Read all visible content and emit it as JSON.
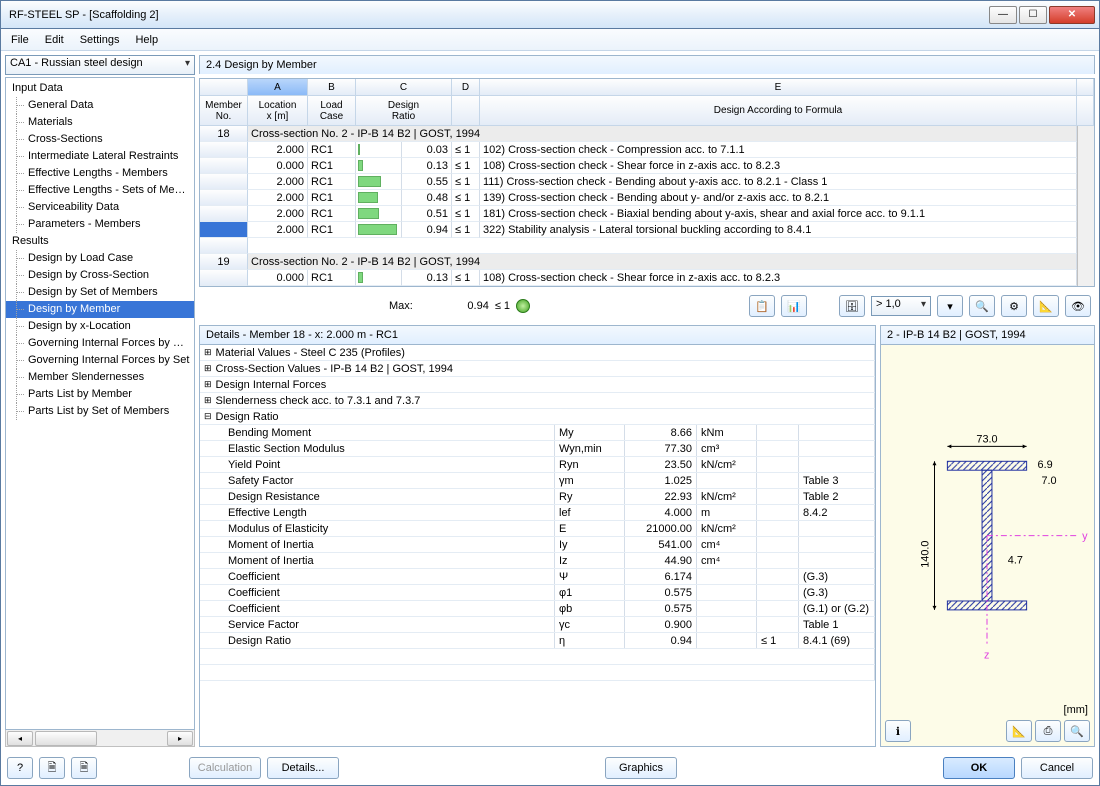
{
  "window_title": "RF-STEEL SP - [Scaffolding 2]",
  "menu": [
    "File",
    "Edit",
    "Settings",
    "Help"
  ],
  "combo": "CA1 - Russian steel design",
  "tree": {
    "input_hdr": "Input Data",
    "input": [
      "General Data",
      "Materials",
      "Cross-Sections",
      "Intermediate Lateral Restraints",
      "Effective Lengths - Members",
      "Effective Lengths - Sets of Members",
      "Serviceability Data",
      "Parameters - Members"
    ],
    "results_hdr": "Results",
    "results": [
      "Design by Load Case",
      "Design by Cross-Section",
      "Design by Set of Members",
      "Design by Member",
      "Design by x-Location",
      "Governing Internal Forces by Member",
      "Governing Internal Forces by Set",
      "Member Slendernesses",
      "Parts List by Member",
      "Parts List by Set of Members"
    ],
    "selected": "Design by Member"
  },
  "panel_title": "2.4 Design by Member",
  "cols": {
    "letters": [
      "A",
      "B",
      "C",
      "D",
      "E"
    ],
    "member": "Member\nNo.",
    "loc": "Location\nx [m]",
    "lc": "Load\nCase",
    "ratio": "Design\nRatio",
    "formula": "Design According to Formula"
  },
  "section1": {
    "num": "18",
    "label": "Cross-section No.  2 - IP-B 14 B2 | GOST, 1994"
  },
  "rows1": [
    {
      "x": "2.000",
      "lc": "RC1",
      "bar": 0.03,
      "r": "0.03",
      "lim": "≤ 1",
      "f": "102) Cross-section check - Compression acc. to 7.1.1"
    },
    {
      "x": "0.000",
      "lc": "RC1",
      "bar": 0.13,
      "r": "0.13",
      "lim": "≤ 1",
      "f": "108) Cross-section check - Shear force in z-axis acc. to 8.2.3"
    },
    {
      "x": "2.000",
      "lc": "RC1",
      "bar": 0.55,
      "r": "0.55",
      "lim": "≤ 1",
      "f": "111) Cross-section check - Bending about y-axis acc. to 8.2.1 - Class 1"
    },
    {
      "x": "2.000",
      "lc": "RC1",
      "bar": 0.48,
      "r": "0.48",
      "lim": "≤ 1",
      "f": "139) Cross-section check - Bending about y- and/or z-axis acc. to 8.2.1"
    },
    {
      "x": "2.000",
      "lc": "RC1",
      "bar": 0.51,
      "r": "0.51",
      "lim": "≤ 1",
      "f": "181) Cross-section check - Biaxial bending about y-axis, shear and axial force acc. to 9.1.1"
    },
    {
      "x": "2.000",
      "lc": "RC1",
      "bar": 0.94,
      "r": "0.94",
      "lim": "≤ 1",
      "f": "322) Stability analysis - Lateral torsional buckling according to 8.4.1",
      "sel": true
    }
  ],
  "section2": {
    "num": "19",
    "label": "Cross-section No.  2 - IP-B 14 B2 | GOST, 1994"
  },
  "rows2": [
    {
      "x": "0.000",
      "lc": "RC1",
      "bar": 0.13,
      "r": "0.13",
      "lim": "≤ 1",
      "f": "108) Cross-section check - Shear force in z-axis acc. to 8.2.3"
    }
  ],
  "max": {
    "label": "Max:",
    "val": "0.94",
    "lim": "≤ 1"
  },
  "filter_val": "> 1,0",
  "details_title": "Details - Member 18 - x: 2.000 m - RC1",
  "det_exp": [
    "Material Values - Steel C 235 (Profiles)",
    "Cross-Section Values  -  IP-B 14 B2 | GOST, 1994",
    "Design Internal Forces",
    "Slenderness check acc. to 7.3.1 and 7.3.7"
  ],
  "det_open": "Design Ratio",
  "det_rows": [
    {
      "n": "Bending Moment",
      "s": "My",
      "v": "8.66",
      "u": "kNm",
      "c": "",
      "r": ""
    },
    {
      "n": "Elastic Section Modulus",
      "s": "Wyn,min",
      "v": "77.30",
      "u": "cm³",
      "c": "",
      "r": ""
    },
    {
      "n": "Yield Point",
      "s": "Ryn",
      "v": "23.50",
      "u": "kN/cm²",
      "c": "",
      "r": ""
    },
    {
      "n": "Safety Factor",
      "s": "γm",
      "v": "1.025",
      "u": "",
      "c": "",
      "r": "Table 3"
    },
    {
      "n": "Design Resistance",
      "s": "Ry",
      "v": "22.93",
      "u": "kN/cm²",
      "c": "",
      "r": "Table 2"
    },
    {
      "n": "Effective Length",
      "s": "lef",
      "v": "4.000",
      "u": "m",
      "c": "",
      "r": "8.4.2"
    },
    {
      "n": "Modulus of Elasticity",
      "s": "E",
      "v": "21000.00",
      "u": "kN/cm²",
      "c": "",
      "r": ""
    },
    {
      "n": "Moment of Inertia",
      "s": "Iy",
      "v": "541.00",
      "u": "cm⁴",
      "c": "",
      "r": ""
    },
    {
      "n": "Moment of Inertia",
      "s": "Iz",
      "v": "44.90",
      "u": "cm⁴",
      "c": "",
      "r": ""
    },
    {
      "n": "Coefficient",
      "s": "Ψ",
      "v": "6.174",
      "u": "",
      "c": "",
      "r": "(G.3)"
    },
    {
      "n": "Coefficient",
      "s": "φ1",
      "v": "0.575",
      "u": "",
      "c": "",
      "r": "(G.3)"
    },
    {
      "n": "Coefficient",
      "s": "φb",
      "v": "0.575",
      "u": "",
      "c": "",
      "r": "(G.1) or (G.2)"
    },
    {
      "n": "Service Factor",
      "s": "γc",
      "v": "0.900",
      "u": "",
      "c": "",
      "r": "Table 1"
    },
    {
      "n": "Design Ratio",
      "s": "η",
      "v": "0.94",
      "u": "",
      "c": "≤ 1",
      "r": "8.4.1 (69)"
    }
  ],
  "cs_title": "2 - IP-B 14 B2 | GOST, 1994",
  "cs_dims": {
    "w": "73.0",
    "h": "140.0",
    "tf": "6.9",
    "tw": "7.0",
    "r": "4.7"
  },
  "cs_unit": "[mm]",
  "buttons": {
    "calc": "Calculation",
    "details": "Details...",
    "graphics": "Graphics",
    "ok": "OK",
    "cancel": "Cancel"
  },
  "colors": {
    "accent": "#3875d7",
    "bar": "#7fd87f",
    "panel": "#e1efff",
    "section_hatch": "#2030a0"
  }
}
